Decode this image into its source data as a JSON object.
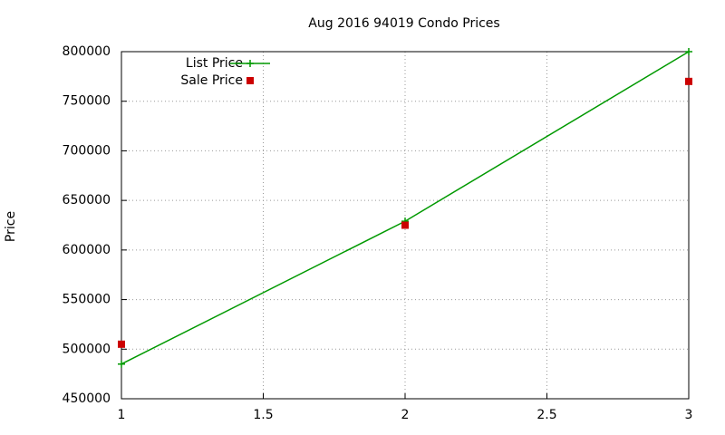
{
  "chart_data": {
    "type": "line",
    "title": "Aug 2016 94019 Condo Prices",
    "y_label": "Price",
    "x": [
      1,
      2,
      3
    ],
    "series": [
      {
        "name": "List Price",
        "color": "#009900",
        "style": "linespoints",
        "values": [
          485000,
          629000,
          800000
        ]
      },
      {
        "name": "Sale Price",
        "color": "#cc0000",
        "style": "points",
        "values": [
          505000,
          625000,
          770000
        ]
      }
    ],
    "xlim": [
      1,
      3
    ],
    "xticks": [
      1,
      1.5,
      2,
      2.5,
      3
    ],
    "ylim": [
      450000,
      800000
    ],
    "yticks": [
      450000,
      500000,
      550000,
      600000,
      650000,
      700000,
      750000,
      800000
    ],
    "grid": true,
    "legend": "top-left"
  }
}
